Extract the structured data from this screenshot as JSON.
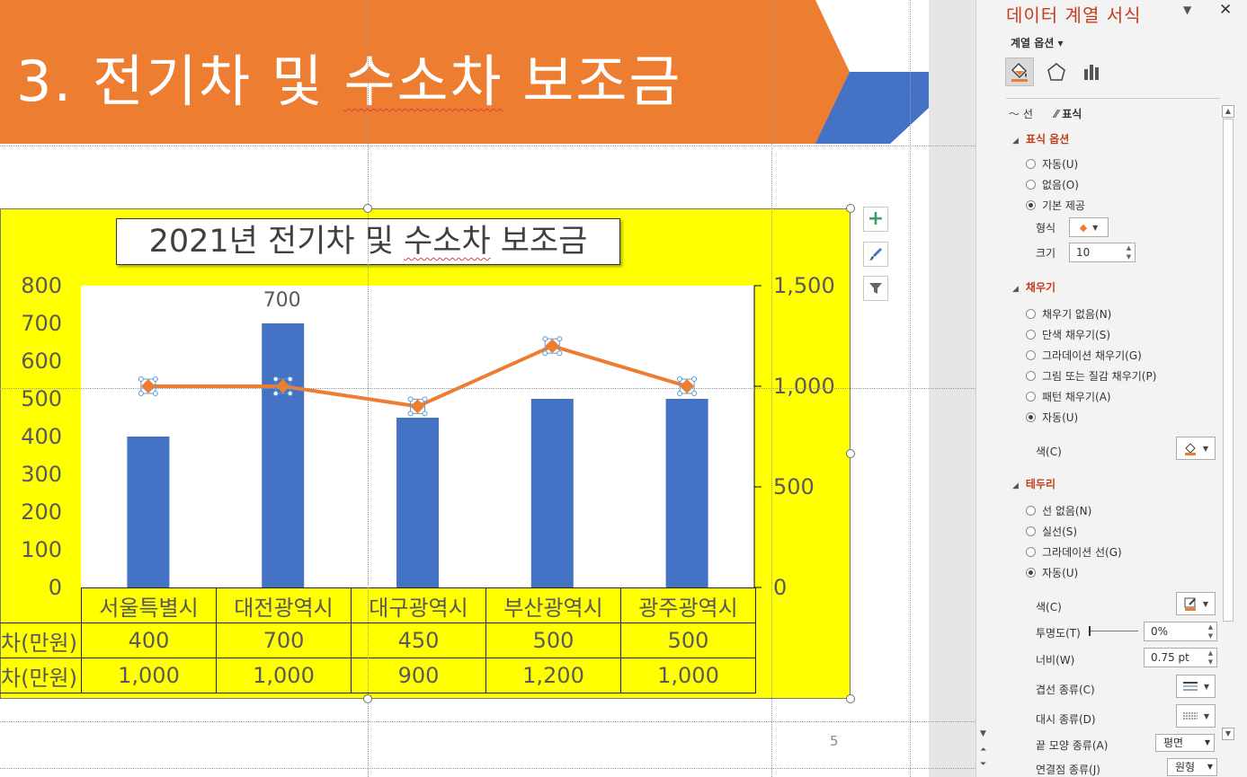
{
  "slide": {
    "title_prefix": "3. 전기차 및 ",
    "title_squiggle": "수소차",
    "title_suffix": " 보조금",
    "page_number": "5",
    "banner_color": "#ed7d31",
    "arrow_color": "#4472c4"
  },
  "chart_data": {
    "type": "bar+line",
    "title_prefix": "2021년 전기차 및 ",
    "title_squiggle": "수소차",
    "title_suffix": " 보조금",
    "categories": [
      "서울특별시",
      "대전광역시",
      "대구광역시",
      "부산광역시",
      "광주광역시"
    ],
    "y_left": {
      "min": 0,
      "max": 800,
      "step": 100,
      "ticks": [
        "0",
        "100",
        "200",
        "300",
        "400",
        "500",
        "600",
        "700",
        "800"
      ]
    },
    "y_right": {
      "min": 0,
      "max": 1500,
      "ticks": [
        "0",
        "500",
        "1,000",
        "1,500"
      ]
    },
    "series": [
      {
        "name": "전기차(만원)",
        "label": "차(만원)",
        "type": "bar",
        "axis": "left",
        "color": "#4472c4",
        "values": [
          400,
          700,
          450,
          500,
          500
        ],
        "display": [
          "400",
          "700",
          "450",
          "500",
          "500"
        ]
      },
      {
        "name": "수소차(만원)",
        "label": "차(만원)",
        "type": "line",
        "axis": "right",
        "color": "#ed7d31",
        "values": [
          1000,
          1000,
          900,
          1200,
          1000
        ],
        "display": [
          "1,000",
          "1,000",
          "900",
          "1,200",
          "1,000"
        ]
      }
    ],
    "data_labels": [
      {
        "series": 0,
        "index": 1,
        "text": "700"
      }
    ],
    "background": "#ffff00",
    "plot_background": "#ffffff",
    "legend": "data-table"
  },
  "pane": {
    "title": "데이터 계열 서식",
    "series_options_label": "계열 옵션 ▾",
    "tabs": {
      "line": "선",
      "marker": "표식"
    },
    "marker_options": {
      "heading": "표식 옵션",
      "options": [
        {
          "label": "자동(U)",
          "checked": false
        },
        {
          "label": "없음(O)",
          "checked": false
        },
        {
          "label": "기본 제공",
          "checked": true
        }
      ],
      "type_label": "형식",
      "size_label": "크기",
      "size_value": "10"
    },
    "fill": {
      "heading": "채우기",
      "options": [
        {
          "label": "채우기 없음(N)",
          "checked": false
        },
        {
          "label": "단색 채우기(S)",
          "checked": false
        },
        {
          "label": "그라데이션 채우기(G)",
          "checked": false
        },
        {
          "label": "그림 또는 질감 채우기(P)",
          "checked": false
        },
        {
          "label": "패턴 채우기(A)",
          "checked": false
        },
        {
          "label": "자동(U)",
          "checked": true
        }
      ],
      "color_label": "색(C)"
    },
    "border": {
      "heading": "테두리",
      "options": [
        {
          "label": "선 없음(N)",
          "checked": false
        },
        {
          "label": "실선(S)",
          "checked": false
        },
        {
          "label": "그라데이션 선(G)",
          "checked": false
        },
        {
          "label": "자동(U)",
          "checked": true
        }
      ],
      "color_label": "색(C)",
      "transparency_label": "투명도(T)",
      "transparency_value": "0%",
      "width_label": "너비(W)",
      "width_value": "0.75 pt",
      "compound_label": "겹선 종류(C)",
      "dash_label": "대시 종류(D)",
      "cap_label": "끝 모양 종류(A)",
      "cap_value": "평면",
      "join_label": "연결점 종류(J)",
      "join_value": "원형"
    }
  }
}
